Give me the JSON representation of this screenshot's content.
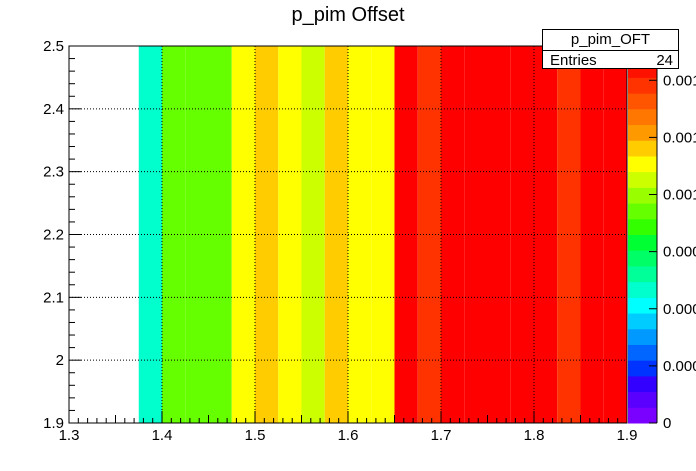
{
  "chart_data": {
    "type": "heatmap",
    "title": "p_pim Offset",
    "xlabel": "",
    "ylabel": "",
    "xlim": [
      1.3,
      1.9
    ],
    "ylim": [
      1.9,
      2.5
    ],
    "x_ticks": [
      "1.3",
      "1.4",
      "1.5",
      "1.6",
      "1.7",
      "1.8",
      "1.9"
    ],
    "y_ticks": [
      "1.9",
      "2",
      "2.1",
      "2.2",
      "2.3",
      "2.4",
      "2.5"
    ],
    "grid": true,
    "x_bin_edges": [
      1.375,
      1.4,
      1.425,
      1.45,
      1.475,
      1.5,
      1.525,
      1.55,
      1.575,
      1.6,
      1.625,
      1.65,
      1.675,
      1.7,
      1.725,
      1.75,
      1.775,
      1.8,
      1.825,
      1.85,
      1.875,
      1.9
    ],
    "bin_values": [
      0.0039,
      0.0059,
      0.0059,
      0.0059,
      0.0072,
      0.0075,
      0.0072,
      0.0069,
      0.0075,
      0.0072,
      0.0072,
      0.0101,
      0.0095,
      0.0101,
      0.0105,
      0.0105,
      0.0105,
      0.0105,
      0.0095,
      0.0105,
      0.0101
    ],
    "z_range": [
      0,
      0.0105
    ],
    "palette": [
      "#7a00ff",
      "#5a00ff",
      "#3300ff",
      "#0033ff",
      "#0066ff",
      "#0099ff",
      "#00ccff",
      "#00ffff",
      "#00ffcc",
      "#00ff99",
      "#00ff66",
      "#00ff33",
      "#33ff00",
      "#66ff00",
      "#99ff00",
      "#ccff00",
      "#ffff00",
      "#ffcc00",
      "#ff9900",
      "#ff7700",
      "#ff5500",
      "#ff3300",
      "#ff1100",
      "#ff0000"
    ],
    "z_labels": [
      "0",
      "0.000",
      "0.000",
      "0.000",
      "0.001",
      "0.001",
      "0.001"
    ],
    "stats": {
      "name": "p_pim_OFT",
      "entries_label": "Entries",
      "entries": "24"
    }
  }
}
